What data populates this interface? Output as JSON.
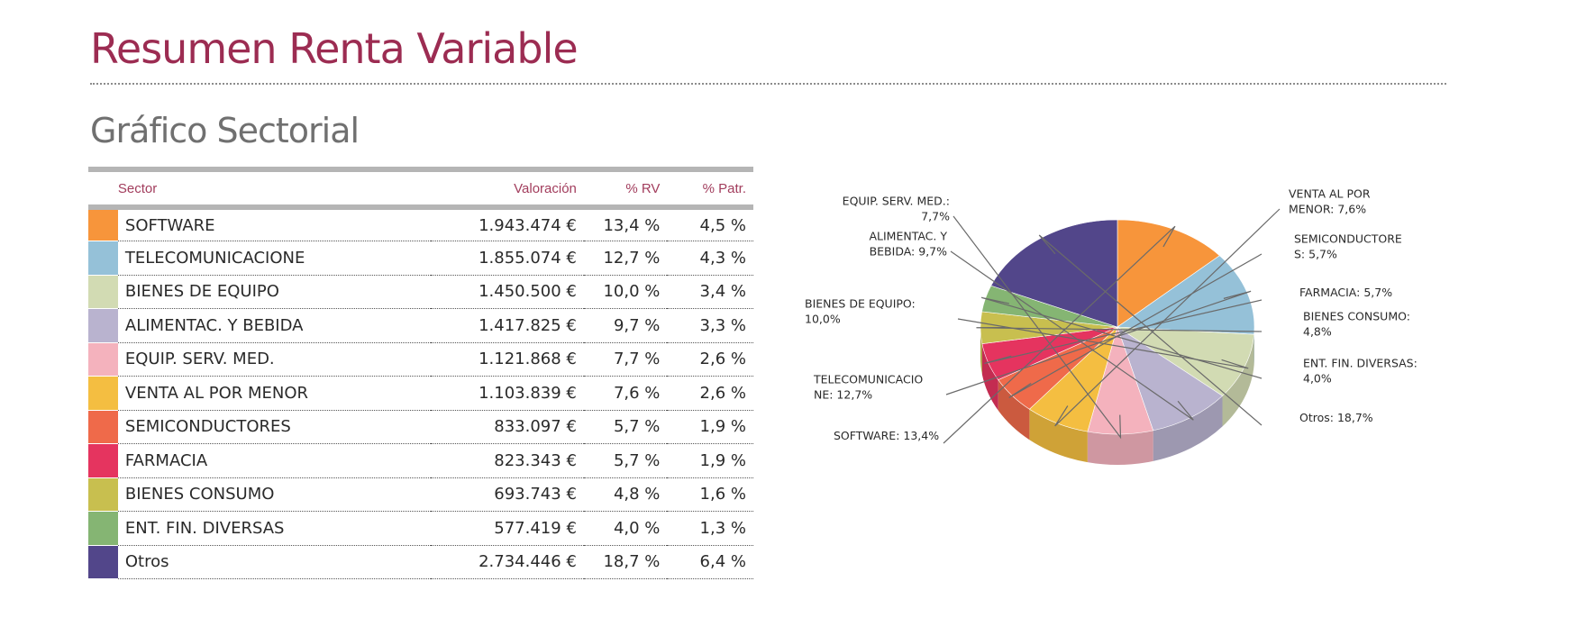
{
  "page": {
    "title": "Resumen Renta Variable",
    "subtitle": "Gráfico Sectorial"
  },
  "table": {
    "headers": {
      "sector": "Sector",
      "valoracion": "Valoración",
      "pct_rv": "% RV",
      "pct_patr": "% Patr."
    },
    "rows": [
      {
        "sector": "SOFTWARE",
        "valoracion": "1.943.474 €",
        "pct_rv": "13,4 %",
        "pct_patr": "4,5 %",
        "color": "#f7953b"
      },
      {
        "sector": "TELECOMUNICACIONE",
        "valoracion": "1.855.074 €",
        "pct_rv": "12,7 %",
        "pct_patr": "4,3 %",
        "color": "#95c1d8"
      },
      {
        "sector": "BIENES DE EQUIPO",
        "valoracion": "1.450.500 €",
        "pct_rv": "10,0 %",
        "pct_patr": "3,4 %",
        "color": "#d2dbb3"
      },
      {
        "sector": "ALIMENTAC. Y BEBIDA",
        "valoracion": "1.417.825 €",
        "pct_rv": "9,7 %",
        "pct_patr": "3,3 %",
        "color": "#b9b3cf"
      },
      {
        "sector": "EQUIP. SERV. MED.",
        "valoracion": "1.121.868 €",
        "pct_rv": "7,7 %",
        "pct_patr": "2,6 %",
        "color": "#f4b2bd"
      },
      {
        "sector": "VENTA AL POR MENOR",
        "valoracion": "1.103.839 €",
        "pct_rv": "7,6 %",
        "pct_patr": "2,6 %",
        "color": "#f4be41"
      },
      {
        "sector": "SEMICONDUCTORES",
        "valoracion": "833.097 €",
        "pct_rv": "5,7 %",
        "pct_patr": "1,9 %",
        "color": "#ef6a4a"
      },
      {
        "sector": "FARMACIA",
        "valoracion": "823.343 €",
        "pct_rv": "5,7 %",
        "pct_patr": "1,9 %",
        "color": "#e5345f"
      },
      {
        "sector": "BIENES CONSUMO",
        "valoracion": "693.743 €",
        "pct_rv": "4,8 %",
        "pct_patr": "1,6 %",
        "color": "#c8bf4f"
      },
      {
        "sector": "ENT. FIN. DIVERSAS",
        "valoracion": "577.419 €",
        "pct_rv": "4,0 %",
        "pct_patr": "1,3 %",
        "color": "#85b573"
      },
      {
        "sector": "Otros",
        "valoracion": "2.734.446 €",
        "pct_rv": "18,7 %",
        "pct_patr": "6,4 %",
        "color": "#52468a"
      }
    ]
  },
  "chart_data": {
    "type": "pie",
    "slices": [
      {
        "name": "SOFTWARE",
        "value": 13.4,
        "color": "#f7953b",
        "label_lines": [
          "SOFTWARE: 13,4%"
        ]
      },
      {
        "name": "TELECOMUNICACIONE",
        "value": 12.7,
        "color": "#95c1d8",
        "label_lines": [
          "TELECOMUNICACIO",
          "NE: 12,7%"
        ]
      },
      {
        "name": "BIENES DE EQUIPO",
        "value": 10.0,
        "color": "#d2dbb3",
        "label_lines": [
          "BIENES DE EQUIPO:",
          "10,0%"
        ]
      },
      {
        "name": "ALIMENTAC. Y BEBIDA",
        "value": 9.7,
        "color": "#b9b3cf",
        "label_lines": [
          "ALIMENTAC. Y",
          "BEBIDA: 9,7%"
        ]
      },
      {
        "name": "EQUIP. SERV. MED.",
        "value": 7.7,
        "color": "#f4b2bd",
        "label_lines": [
          "EQUIP. SERV. MED.:",
          "7,7%"
        ]
      },
      {
        "name": "VENTA AL POR MENOR",
        "value": 7.6,
        "color": "#f4be41",
        "label_lines": [
          "VENTA AL POR",
          "MENOR: 7,6%"
        ]
      },
      {
        "name": "SEMICONDUCTORES",
        "value": 5.7,
        "color": "#ef6a4a",
        "label_lines": [
          "SEMICONDUCTORE",
          "S: 5,7%"
        ]
      },
      {
        "name": "FARMACIA",
        "value": 5.7,
        "color": "#e5345f",
        "label_lines": [
          "FARMACIA: 5,7%"
        ]
      },
      {
        "name": "BIENES CONSUMO",
        "value": 4.8,
        "color": "#c8bf4f",
        "label_lines": [
          "BIENES CONSUMO:",
          "4,8%"
        ]
      },
      {
        "name": "ENT. FIN. DIVERSAS",
        "value": 4.0,
        "color": "#85b573",
        "label_lines": [
          "ENT. FIN. DIVERSAS:",
          "4,0%"
        ]
      },
      {
        "name": "Otros",
        "value": 18.7,
        "color": "#52468a",
        "label_lines": [
          "Otros: 18,7%"
        ]
      }
    ]
  }
}
